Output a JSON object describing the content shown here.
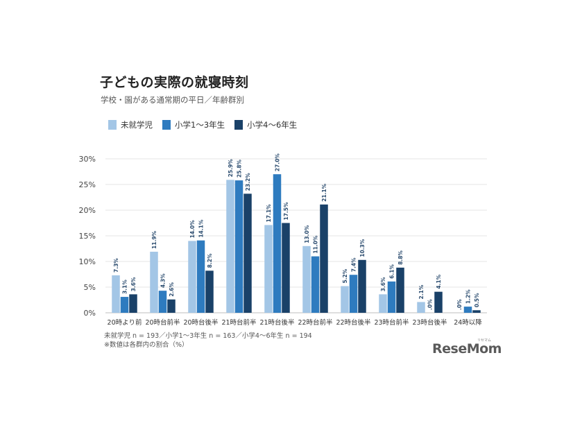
{
  "chart_data": {
    "type": "bar",
    "title": "子どもの実際の就寝時刻",
    "subtitle": "学校・園がある通常期の平日／年齢群別",
    "categories": [
      "20時より前",
      "20時台前半",
      "20時台後半",
      "21時台前半",
      "21時台後半",
      "22時台前半",
      "22時台後半",
      "23時台前半",
      "23時台後半",
      "24時以降"
    ],
    "series": [
      {
        "name": "未就学児",
        "color": "#a3c6e6",
        "values": [
          7.3,
          11.9,
          14.0,
          25.9,
          17.1,
          13.0,
          5.2,
          3.6,
          2.1,
          0.0
        ],
        "labels": [
          "7.3%",
          "11.9%",
          "14.0%",
          "25.9%",
          "17.1%",
          "13.0%",
          "5.2%",
          "3.6%",
          "2.1%",
          ".0%"
        ]
      },
      {
        "name": "小学1～3年生",
        "color": "#2e7bbf",
        "values": [
          3.1,
          4.3,
          14.1,
          25.8,
          27.0,
          11.0,
          7.4,
          6.1,
          0.0,
          1.2
        ],
        "labels": [
          "3.1%",
          "4.3%",
          "14.1%",
          "25.8%",
          "27.0%",
          "11.0%",
          "7.4%",
          "6.1%",
          ".0%",
          "1.2%"
        ]
      },
      {
        "name": "小学4～6年生",
        "color": "#1a4168",
        "values": [
          3.6,
          2.6,
          8.2,
          23.2,
          17.5,
          21.1,
          10.3,
          8.8,
          4.1,
          0.5
        ],
        "labels": [
          "3.6%",
          "2.6%",
          "8.2%",
          "23.2%",
          "17.5%",
          "21.1%",
          "10.3%",
          "8.8%",
          "4.1%",
          "0.5%"
        ]
      }
    ],
    "yticks": [
      "0%",
      "5%",
      "10%",
      "15%",
      "20%",
      "25%",
      "30%"
    ],
    "ylim": [
      0,
      30
    ],
    "grid": true,
    "legend_position": "top-left"
  },
  "notes": {
    "line1": "未就学児 n = 193／小学1～3年生 n = 163／小学4～6年生 n = 194",
    "line2": "※数値は各群内の割合（%）"
  },
  "brand": {
    "logo": "ReseMom",
    "kana": "リセマム"
  }
}
